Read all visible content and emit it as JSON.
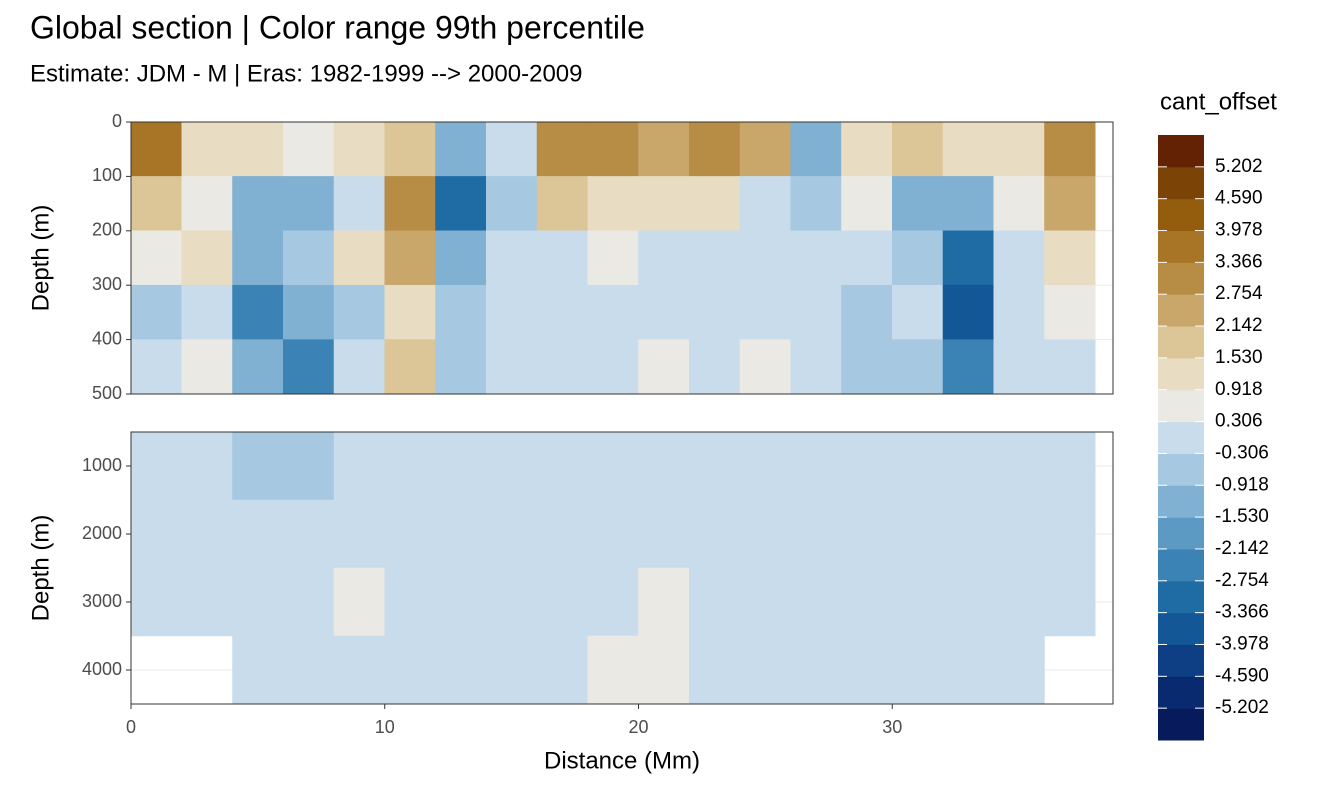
{
  "chart_data": [
    {
      "type": "heatmap",
      "title": "Global section | Color range 99th percentile",
      "subtitle": "Estimate: JDM - M | Eras: 1982-1999 --> 2000-2009",
      "ylabel": "Depth (m)",
      "xlim": [
        0,
        38.7
      ],
      "ylim": [
        0,
        500
      ],
      "y_reversed": true,
      "yticks": [
        0,
        100,
        200,
        300,
        400,
        500
      ],
      "grid": true,
      "x_bins": [
        0,
        2,
        4,
        6,
        8,
        10,
        12,
        14,
        16,
        18,
        20,
        22,
        24,
        26,
        28,
        30,
        32,
        34,
        36,
        38,
        38.7
      ],
      "y_bins": [
        0,
        100,
        200,
        300,
        400,
        500
      ],
      "values": [
        [
          3.5,
          1.5,
          1.5,
          0.9,
          1.5,
          2.1,
          -1.5,
          0.3,
          3.0,
          3.0,
          2.5,
          3.0,
          2.5,
          -1.5,
          1.5,
          2.1,
          1.5,
          1.5,
          3.0,
          null
        ],
        [
          2,
          0.8,
          -1.5,
          -1.5,
          0.3,
          2.8,
          -2.8,
          -0.9,
          2.1,
          1.5,
          1.0,
          1.5,
          0.3,
          -0.9,
          0.9,
          -1.5,
          -1.5,
          0.9,
          2.5,
          null
        ],
        [
          0.5,
          1.5,
          -1.5,
          -0.9,
          1.5,
          2.2,
          -1.5,
          -0.3,
          -0.3,
          0.9,
          0,
          0.3,
          0.3,
          -0.3,
          -0.3,
          -0.9,
          -2.8,
          0.3,
          1.5,
          null
        ],
        [
          -0.5,
          0,
          -2.2,
          -1.5,
          -0.9,
          1.5,
          -0.9,
          -0.3,
          -0.3,
          0.3,
          0.3,
          0,
          0.3,
          0.3,
          -0.9,
          -0.3,
          -3.5,
          -0.3,
          0.9,
          null
        ],
        [
          0.3,
          0.9,
          -1.5,
          -2.2,
          -0.3,
          2.1,
          -0.9,
          -0.3,
          -0.3,
          0.3,
          0.9,
          0.3,
          0.9,
          0.3,
          -0.9,
          -0.9,
          -2.2,
          -0.3,
          0.3,
          null
        ]
      ],
      "legend": {
        "title": "cant_offset",
        "breaks": [
          -5.202,
          {
            "value": -4.59,
            "label": "-4.590"
          },
          -3.978,
          -3.366,
          -2.754,
          -2.142,
          {
            "value": -1.53,
            "label": "-1.530"
          },
          -0.918,
          -0.306,
          0.306,
          0.918,
          {
            "value": 1.53,
            "label": "1.530"
          },
          2.142,
          2.754,
          3.366,
          3.978,
          {
            "value": 4.59,
            "label": "4.590"
          },
          5.202
        ],
        "colors": [
          "#061a5c",
          "#0a2a70",
          "#0e3f84",
          "#145796",
          "#1f6ca5",
          "#3a83b4",
          "#5d9ac3",
          "#81b1d2",
          "#a6c8e0",
          "#c9dceb",
          "#eae9e4",
          "#e8dcc2",
          "#dcc596",
          "#c9a76a",
          "#b78c45",
          "#a87425",
          "#945c0d",
          "#7c4307",
          "#642204"
        ]
      }
    },
    {
      "type": "heatmap",
      "ylabel": "Depth (m)",
      "xlabel": "Distance (Mm)",
      "xlim": [
        0,
        38.7
      ],
      "ylim": [
        500,
        4500
      ],
      "y_reversed": true,
      "xticks": [
        0,
        10,
        20,
        30
      ],
      "yticks": [
        1000,
        2000,
        3000,
        4000
      ],
      "grid": true,
      "x_bins": [
        0,
        2,
        4,
        6,
        8,
        10,
        12,
        14,
        16,
        18,
        20,
        22,
        24,
        26,
        28,
        30,
        32,
        34,
        36,
        38,
        38.7
      ],
      "y_bins": [
        500,
        1500,
        2500,
        3500,
        4500
      ],
      "values": [
        [
          -0.3,
          -0.3,
          -0.9,
          -0.9,
          -0.3,
          0.3,
          0,
          0,
          0,
          0,
          0,
          0,
          0,
          0.3,
          -0.3,
          -0.3,
          -0.3,
          0,
          0.3,
          null
        ],
        [
          0,
          0,
          0.3,
          0.3,
          0.3,
          0,
          -0.3,
          -0.3,
          -0.3,
          0,
          0.3,
          0.3,
          0,
          0.3,
          0.3,
          0.3,
          0,
          0,
          0,
          null
        ],
        [
          0,
          0.3,
          0,
          0.3,
          0.9,
          0.3,
          -0.3,
          -0.3,
          -0.3,
          0.3,
          0.9,
          0.3,
          0.3,
          0.3,
          0.3,
          0.3,
          0.3,
          0.3,
          0,
          null
        ],
        [
          null,
          null,
          0,
          0,
          0.3,
          0,
          -0.3,
          -0.3,
          -0.3,
          0.9,
          0.9,
          0.3,
          0.3,
          0.3,
          0.3,
          0.3,
          0.3,
          0.3,
          null,
          null
        ]
      ]
    }
  ]
}
